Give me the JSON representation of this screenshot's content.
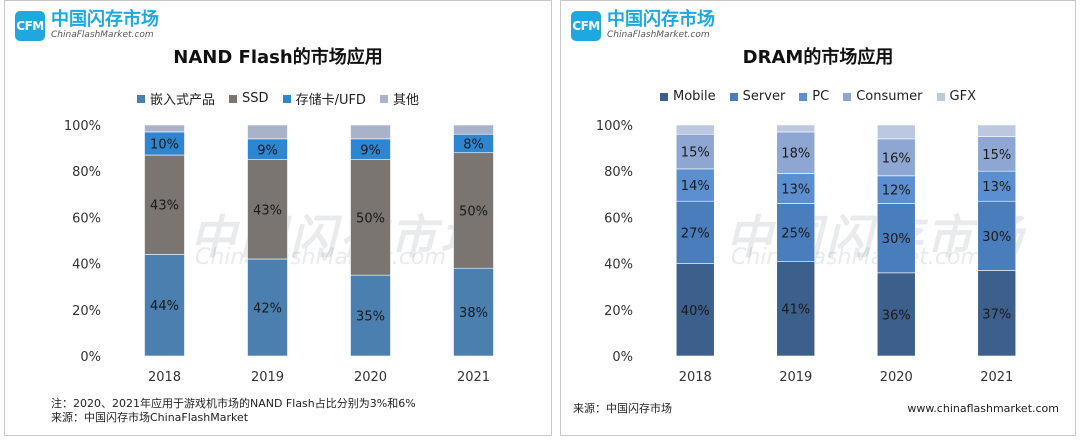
{
  "logo": {
    "mark": "CFM",
    "cn": "中国闪存市场",
    "en": "ChinaFlashMarket.com"
  },
  "watermark": {
    "cn": "中国闪存市场",
    "en": "ChinaFlashMarket.com"
  },
  "left": {
    "footnote_1": "注：2020、2021年应用于游戏机市场的NAND Flash占比分别为3%和6%",
    "footnote_2": "来源：中国闪存市场ChinaFlashMarket"
  },
  "right": {
    "source": "来源：中国闪存市场",
    "website": "www.chinaflashmarket.com"
  },
  "chart_data": [
    {
      "type": "bar",
      "stacked": true,
      "title": "NAND Flash的市场应用",
      "categories": [
        "2018",
        "2019",
        "2020",
        "2021"
      ],
      "ylim": [
        0,
        100
      ],
      "yticks": [
        "0%",
        "20%",
        "40%",
        "60%",
        "80%",
        "100%"
      ],
      "legend_position": "top",
      "grid": false,
      "series": [
        {
          "name": "嵌入式产品",
          "color": "#4a7faf",
          "values": [
            44,
            42,
            35,
            38
          ],
          "labels": [
            "44%",
            "42%",
            "35%",
            "38%"
          ]
        },
        {
          "name": "SSD",
          "color": "#7a7571",
          "values": [
            43,
            43,
            50,
            50
          ],
          "labels": [
            "43%",
            "43%",
            "50%",
            "50%"
          ]
        },
        {
          "name": "存储卡/UFD",
          "color": "#2e86d1",
          "values": [
            10,
            9,
            9,
            8
          ],
          "labels": [
            "10%",
            "9%",
            "9%",
            "8%"
          ]
        },
        {
          "name": "其他",
          "color": "#a8b3c9",
          "values": [
            3,
            6,
            6,
            4
          ],
          "labels": [
            "",
            "",
            "",
            ""
          ]
        }
      ]
    },
    {
      "type": "bar",
      "stacked": true,
      "title": "DRAM的市场应用",
      "categories": [
        "2018",
        "2019",
        "2020",
        "2021"
      ],
      "ylim": [
        0,
        100
      ],
      "yticks": [
        "0%",
        "20%",
        "40%",
        "60%",
        "80%",
        "100%"
      ],
      "legend_position": "top",
      "grid": false,
      "series": [
        {
          "name": "Mobile",
          "color": "#3d5f8c",
          "values": [
            40,
            41,
            36,
            37
          ],
          "labels": [
            "40%",
            "41%",
            "36%",
            "37%"
          ]
        },
        {
          "name": "Server",
          "color": "#4a7dbb",
          "values": [
            27,
            25,
            30,
            30
          ],
          "labels": [
            "27%",
            "25%",
            "30%",
            "30%"
          ]
        },
        {
          "name": "PC",
          "color": "#5b8fd0",
          "values": [
            14,
            13,
            12,
            13
          ],
          "labels": [
            "14%",
            "13%",
            "12%",
            "13%"
          ]
        },
        {
          "name": "Consumer",
          "color": "#8ea7d2",
          "values": [
            15,
            18,
            16,
            15
          ],
          "labels": [
            "15%",
            "18%",
            "16%",
            "15%"
          ]
        },
        {
          "name": "GFX",
          "color": "#bcc8e0",
          "values": [
            4,
            3,
            6,
            5
          ],
          "labels": [
            "",
            "",
            "",
            ""
          ]
        }
      ]
    }
  ]
}
